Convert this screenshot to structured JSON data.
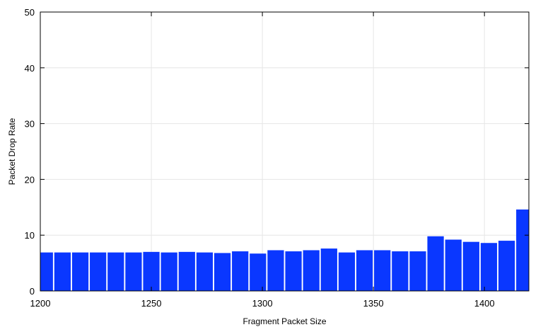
{
  "chart_data": {
    "type": "bar",
    "xlabel": "Fragment Packet Size",
    "ylabel": "Packet Drop Rate",
    "xlim": [
      1200,
      1420
    ],
    "ylim": [
      0,
      50
    ],
    "x_ticks": [
      1200,
      1250,
      1300,
      1350,
      1400
    ],
    "y_ticks": [
      0,
      10,
      20,
      30,
      40,
      50
    ],
    "grid": true,
    "bar_color": "#0a37ff",
    "x": [
      1202,
      1210,
      1218,
      1226,
      1234,
      1242,
      1250,
      1258,
      1266,
      1274,
      1282,
      1290,
      1298,
      1306,
      1314,
      1322,
      1330,
      1338,
      1346,
      1354,
      1362,
      1370,
      1378,
      1386,
      1394,
      1402,
      1410,
      1418
    ],
    "values": [
      6.9,
      6.9,
      6.9,
      6.9,
      6.9,
      6.9,
      7.0,
      6.9,
      7.0,
      6.9,
      6.8,
      7.1,
      6.7,
      7.3,
      7.1,
      7.3,
      7.6,
      6.9,
      7.3,
      7.3,
      7.1,
      7.1,
      9.8,
      9.2,
      8.8,
      8.6,
      9.0,
      14.6
    ]
  }
}
